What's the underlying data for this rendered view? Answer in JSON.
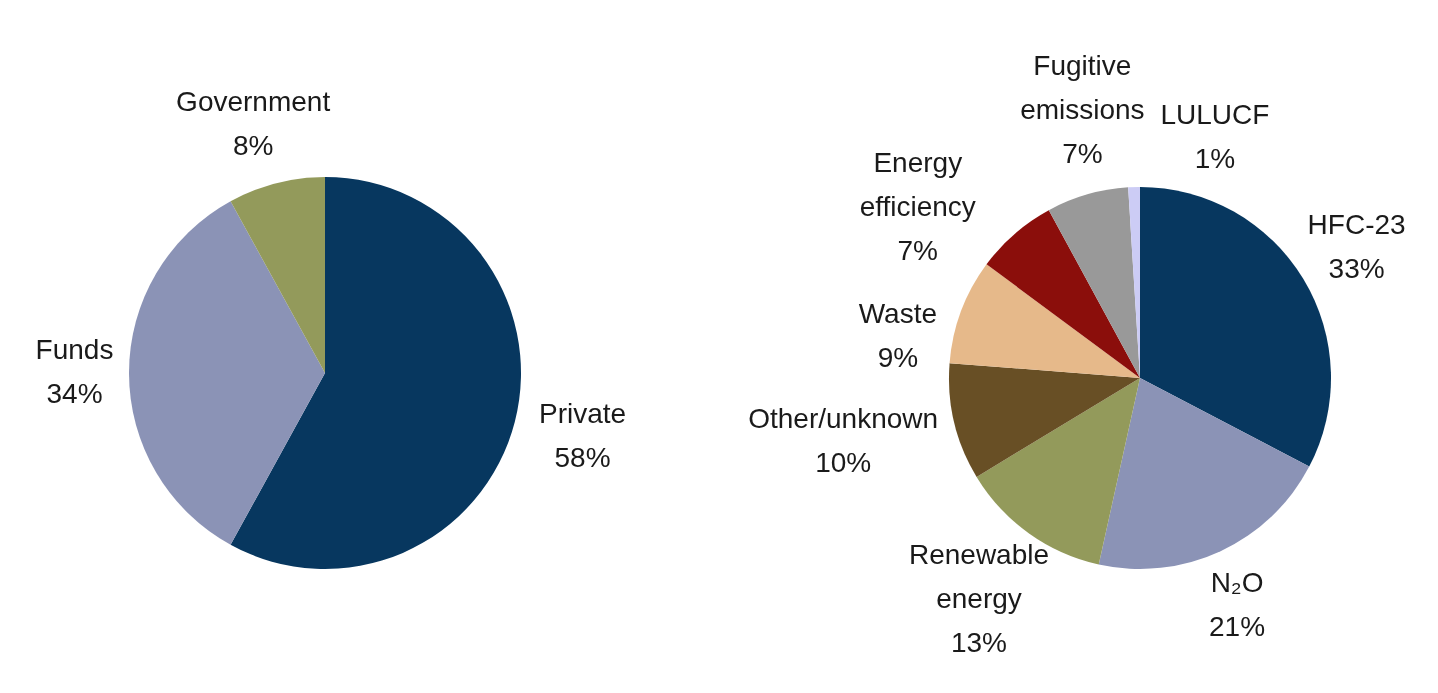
{
  "chart_data": [
    {
      "type": "pie",
      "categories": [
        "Private",
        "Funds",
        "Government"
      ],
      "values": [
        58,
        34,
        8
      ],
      "value_labels": [
        "58%",
        "34%",
        "8%"
      ],
      "colors": [
        "#07375f",
        "#8b93b6",
        "#939a5b"
      ]
    },
    {
      "type": "pie",
      "categories": [
        "HFC-23",
        "N₂O",
        "Renewable energy",
        "Other/unknown",
        "Waste",
        "Energy efficiency",
        "Fugitive emissions",
        "LULUCF"
      ],
      "values": [
        33,
        21,
        13,
        10,
        9,
        7,
        7,
        1
      ],
      "value_labels": [
        "33%",
        "21%",
        "13%",
        "10%",
        "9%",
        "7%",
        "7%",
        "1%"
      ],
      "colors": [
        "#07375f",
        "#8b93b6",
        "#939a5b",
        "#684f25",
        "#e6b98a",
        "#8b0e0b",
        "#999999",
        "#ccccf5"
      ]
    }
  ]
}
